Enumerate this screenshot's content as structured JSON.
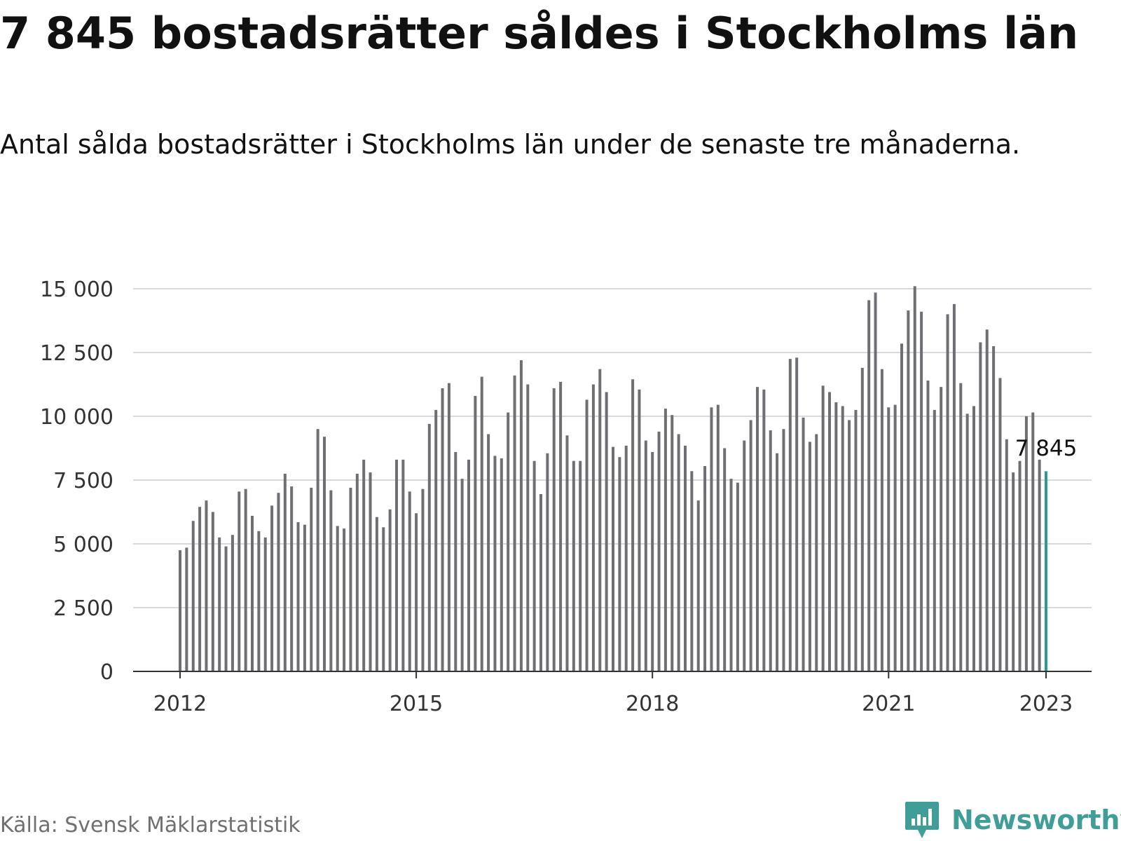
{
  "header": {
    "title": "7 845 bostadsrätter såldes i Stockholms län",
    "subtitle": "Antal sålda bostadsrätter i Stockholms län under de senaste tre månaderna."
  },
  "footer": {
    "source": "Källa: Svensk Mäklarstatistik",
    "brand": "Newsworthy"
  },
  "colors": {
    "bar": "#6e6e73",
    "highlight": "#2a9d8f",
    "grid": "#d9d9d9",
    "axis": "#333333",
    "brand": "#3f9e98"
  },
  "icons": {
    "logo": "chat-bubble-bar-chart-icon"
  },
  "chart_data": {
    "type": "bar",
    "title": "7 845 bostadsrätter såldes i Stockholms län",
    "subtitle": "Antal sålda bostadsrätter i Stockholms län under de senaste tre månaderna.",
    "xlabel": "",
    "ylabel": "",
    "x_range": [
      "2012-01",
      "2023-01"
    ],
    "ylim": [
      0,
      15000
    ],
    "yticks": [
      0,
      2500,
      5000,
      7500,
      10000,
      12500,
      15000
    ],
    "ytick_labels": [
      "0",
      "2 500",
      "5 000",
      "7 500",
      "10 000",
      "12 500",
      "15 000"
    ],
    "xticks": [
      "2012-01",
      "2015-01",
      "2018-01",
      "2021-01",
      "2023-01"
    ],
    "xtick_labels": [
      "2012",
      "2015",
      "2018",
      "2021",
      "2023"
    ],
    "grid": true,
    "annotation": {
      "x": "2023-01",
      "label": "7 845"
    },
    "x": [
      "2012-01",
      "2012-02",
      "2012-03",
      "2012-04",
      "2012-05",
      "2012-06",
      "2012-07",
      "2012-08",
      "2012-09",
      "2012-10",
      "2012-11",
      "2012-12",
      "2013-01",
      "2013-02",
      "2013-03",
      "2013-04",
      "2013-05",
      "2013-06",
      "2013-07",
      "2013-08",
      "2013-09",
      "2013-10",
      "2013-11",
      "2013-12",
      "2014-01",
      "2014-02",
      "2014-03",
      "2014-04",
      "2014-05",
      "2014-06",
      "2014-07",
      "2014-08",
      "2014-09",
      "2014-10",
      "2014-11",
      "2014-12",
      "2015-01",
      "2015-02",
      "2015-03",
      "2015-04",
      "2015-05",
      "2015-06",
      "2015-07",
      "2015-08",
      "2015-09",
      "2015-10",
      "2015-11",
      "2015-12",
      "2016-01",
      "2016-02",
      "2016-03",
      "2016-04",
      "2016-05",
      "2016-06",
      "2016-07",
      "2016-08",
      "2016-09",
      "2016-10",
      "2016-11",
      "2016-12",
      "2017-01",
      "2017-02",
      "2017-03",
      "2017-04",
      "2017-05",
      "2017-06",
      "2017-07",
      "2017-08",
      "2017-09",
      "2017-10",
      "2017-11",
      "2017-12",
      "2018-01",
      "2018-02",
      "2018-03",
      "2018-04",
      "2018-05",
      "2018-06",
      "2018-07",
      "2018-08",
      "2018-09",
      "2018-10",
      "2018-11",
      "2018-12",
      "2019-01",
      "2019-02",
      "2019-03",
      "2019-04",
      "2019-05",
      "2019-06",
      "2019-07",
      "2019-08",
      "2019-09",
      "2019-10",
      "2019-11",
      "2019-12",
      "2020-01",
      "2020-02",
      "2020-03",
      "2020-04",
      "2020-05",
      "2020-06",
      "2020-07",
      "2020-08",
      "2020-09",
      "2020-10",
      "2020-11",
      "2020-12",
      "2021-01",
      "2021-02",
      "2021-03",
      "2021-04",
      "2021-05",
      "2021-06",
      "2021-07",
      "2021-08",
      "2021-09",
      "2021-10",
      "2021-11",
      "2021-12",
      "2022-01",
      "2022-02",
      "2022-03",
      "2022-04",
      "2022-05",
      "2022-06",
      "2022-07",
      "2022-08",
      "2022-09",
      "2022-10",
      "2022-11",
      "2022-12",
      "2023-01"
    ],
    "values": [
      4750,
      4850,
      5900,
      6450,
      6700,
      6250,
      5250,
      4900,
      5350,
      7050,
      7150,
      6100,
      5500,
      5250,
      6500,
      7000,
      7750,
      7250,
      5850,
      5750,
      7200,
      9500,
      9200,
      7100,
      5700,
      5600,
      7200,
      7750,
      8300,
      7800,
      6050,
      5650,
      6350,
      8300,
      8300,
      7050,
      6200,
      7150,
      9700,
      10250,
      11100,
      11300,
      8600,
      7550,
      8300,
      10800,
      11550,
      9300,
      8450,
      8350,
      10150,
      11600,
      12200,
      11250,
      8250,
      6950,
      8550,
      11100,
      11350,
      9250,
      8250,
      8250,
      10650,
      11250,
      11850,
      10950,
      8800,
      8400,
      8850,
      11450,
      11050,
      9050,
      8600,
      9400,
      10300,
      10050,
      9300,
      8850,
      7850,
      6700,
      8050,
      10350,
      10450,
      8750,
      7550,
      7400,
      9050,
      9850,
      11150,
      11050,
      9450,
      8550,
      9500,
      12250,
      12300,
      9950,
      9000,
      9300,
      11200,
      10950,
      10550,
      10400,
      9850,
      10250,
      11900,
      14550,
      14850,
      11850,
      10350,
      10450,
      12850,
      14150,
      15100,
      14100,
      11400,
      10250,
      11150,
      14000,
      14400,
      11300,
      10100,
      10400,
      12900,
      13400,
      12750,
      11500,
      9100,
      7800,
      8250,
      10000,
      10150,
      8300,
      7845
    ]
  }
}
